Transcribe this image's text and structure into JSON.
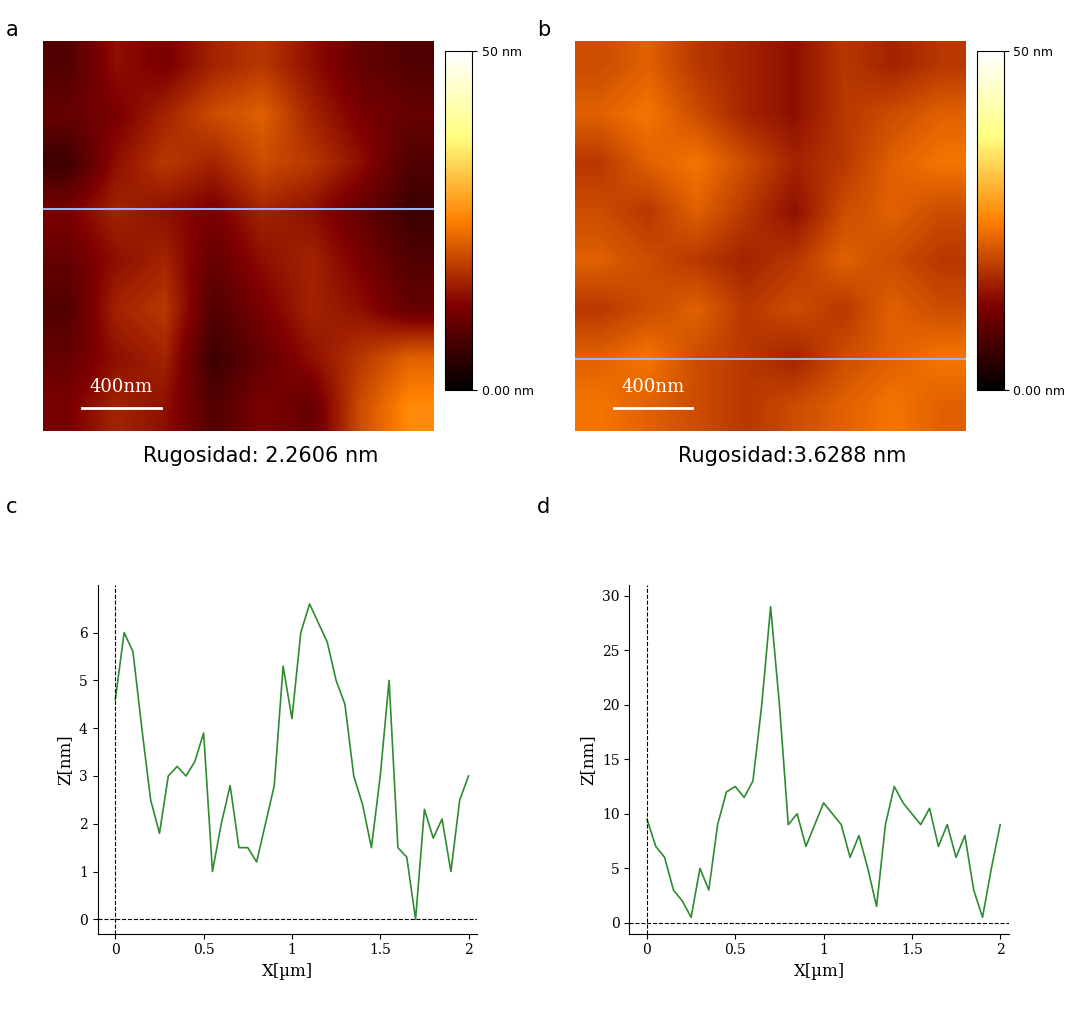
{
  "chart_data": [
    {
      "type": "heatmap",
      "panel_label": "a",
      "caption": "Rugosidad: 2.2606 nm",
      "xlim": [
        0,
        2
      ],
      "ylim": [
        0,
        2
      ],
      "tick_labels": false,
      "cells": [
        [
          8,
          14,
          12,
          16,
          18,
          14,
          10,
          8
        ],
        [
          10,
          12,
          16,
          20,
          22,
          16,
          12,
          10
        ],
        [
          6,
          14,
          18,
          16,
          20,
          18,
          14,
          8
        ],
        [
          12,
          16,
          14,
          12,
          16,
          14,
          10,
          6
        ],
        [
          10,
          14,
          16,
          10,
          14,
          16,
          12,
          8
        ],
        [
          8,
          16,
          18,
          8,
          12,
          16,
          14,
          10
        ],
        [
          10,
          14,
          16,
          6,
          10,
          14,
          18,
          22
        ],
        [
          12,
          16,
          14,
          8,
          12,
          10,
          20,
          26
        ]
      ],
      "color_range": [
        0,
        50
      ],
      "color_ticks": [
        {
          "value": 0,
          "label": "0.00 nm"
        },
        {
          "value": 50,
          "label": "50 nm"
        }
      ],
      "scale_bar": {
        "length": 0.4,
        "label": "400nm"
      },
      "profile_y": 1.14,
      "color": "#9fb4ec"
    },
    {
      "type": "heatmap",
      "panel_label": "b",
      "caption": "Rugosidad:3.6288 nm",
      "xlim": [
        0,
        2
      ],
      "ylim": [
        0,
        2
      ],
      "tick_labels": false,
      "cells": [
        [
          20,
          22,
          18,
          16,
          14,
          18,
          16,
          18
        ],
        [
          22,
          24,
          20,
          16,
          14,
          18,
          20,
          22
        ],
        [
          18,
          22,
          24,
          20,
          16,
          18,
          22,
          24
        ],
        [
          20,
          18,
          22,
          18,
          14,
          20,
          22,
          20
        ],
        [
          22,
          20,
          18,
          16,
          18,
          22,
          20,
          18
        ],
        [
          18,
          20,
          22,
          18,
          20,
          18,
          22,
          20
        ],
        [
          22,
          24,
          20,
          18,
          16,
          20,
          22,
          24
        ],
        [
          24,
          22,
          20,
          18,
          20,
          22,
          24,
          22
        ]
      ],
      "color_range": [
        0,
        50
      ],
      "color_ticks": [
        {
          "value": 0,
          "label": "0.00 nm"
        },
        {
          "value": 50,
          "label": "50 nm"
        }
      ],
      "scale_bar": {
        "length": 0.4,
        "label": "400nm"
      },
      "profile_y": 0.37,
      "color": "#9fb4ec"
    },
    {
      "type": "line",
      "panel_label": "c",
      "x_label": "X[µm]",
      "y_label": "Z[nm]",
      "x": [
        0,
        0.05,
        0.1,
        0.15,
        0.2,
        0.25,
        0.3,
        0.35,
        0.4,
        0.45,
        0.5,
        0.55,
        0.6,
        0.65,
        0.7,
        0.75,
        0.8,
        0.85,
        0.9,
        0.95,
        1.0,
        1.05,
        1.1,
        1.15,
        1.2,
        1.25,
        1.3,
        1.35,
        1.4,
        1.45,
        1.5,
        1.55,
        1.6,
        1.65,
        1.7,
        1.75,
        1.8,
        1.85,
        1.9,
        1.95,
        2.0
      ],
      "values": [
        4.6,
        6.0,
        5.6,
        4.0,
        2.5,
        1.8,
        3.0,
        3.2,
        3.0,
        3.3,
        3.9,
        1.0,
        2.0,
        2.8,
        1.5,
        1.5,
        1.2,
        2.0,
        2.8,
        5.3,
        4.2,
        6.0,
        6.6,
        6.2,
        5.8,
        5.0,
        4.5,
        3.0,
        2.4,
        1.5,
        3.0,
        5.0,
        1.5,
        1.3,
        0.0,
        2.3,
        1.7,
        2.1,
        1.0,
        2.5,
        3.0
      ],
      "color": "#2e8b2e",
      "xlim": [
        -0.1,
        2.05
      ],
      "ylim": [
        -0.3,
        7.0
      ],
      "xticks": [
        0,
        0.5,
        1,
        1.5,
        2
      ],
      "yticks": [
        0,
        1,
        2,
        3,
        4,
        5,
        6
      ]
    },
    {
      "type": "line",
      "panel_label": "d",
      "x_label": "X[µm]",
      "y_label": "Z[nm]",
      "x": [
        0,
        0.05,
        0.1,
        0.15,
        0.2,
        0.25,
        0.3,
        0.35,
        0.4,
        0.45,
        0.5,
        0.55,
        0.6,
        0.65,
        0.7,
        0.75,
        0.8,
        0.85,
        0.9,
        0.95,
        1.0,
        1.05,
        1.1,
        1.15,
        1.2,
        1.25,
        1.3,
        1.35,
        1.4,
        1.45,
        1.5,
        1.55,
        1.6,
        1.65,
        1.7,
        1.75,
        1.8,
        1.85,
        1.9,
        1.95,
        2.0
      ],
      "values": [
        9.5,
        7,
        6,
        3,
        2,
        0.5,
        5,
        3,
        9,
        12,
        12.5,
        11.5,
        13,
        20,
        29,
        20,
        9,
        10,
        7,
        9,
        11,
        10,
        9,
        6,
        8,
        5,
        1.5,
        9,
        12.5,
        11,
        10,
        9,
        10.5,
        7,
        9,
        6,
        8,
        3,
        0.5,
        5,
        9
      ],
      "color": "#2e8b2e",
      "xlim": [
        -0.1,
        2.05
      ],
      "ylim": [
        -1,
        31
      ],
      "xticks": [
        0,
        0.5,
        1,
        1.5,
        2
      ],
      "yticks": [
        0,
        5,
        10,
        15,
        20,
        25,
        30
      ]
    }
  ]
}
